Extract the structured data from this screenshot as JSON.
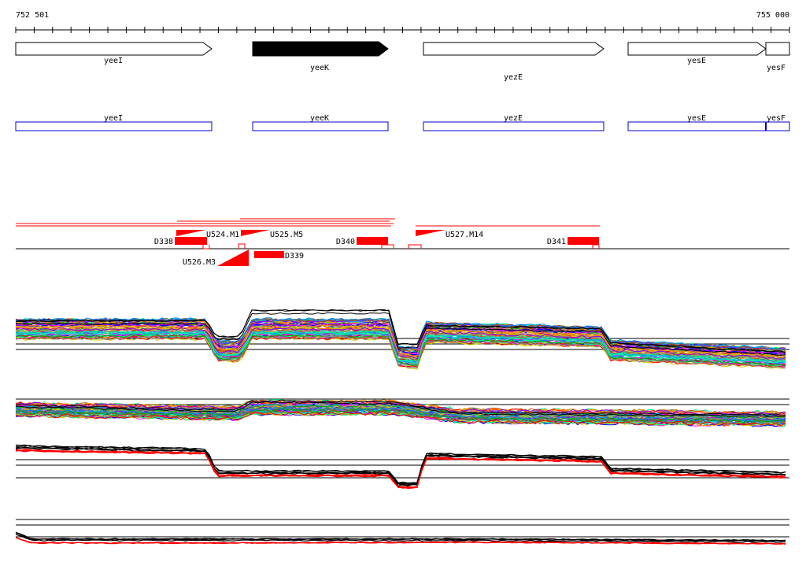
{
  "ruler": {
    "start_label": "752 501",
    "end_label": "755 000",
    "ticks": 42
  },
  "genes": [
    {
      "name": "yeeI",
      "filled": false
    },
    {
      "name": "yeeK",
      "filled": true
    },
    {
      "name": "yezE",
      "filled": false
    },
    {
      "name": "yesE",
      "filled": false
    },
    {
      "name": "yesF",
      "filled": false
    }
  ],
  "annotation_boxes": [
    {
      "name": "yeeI"
    },
    {
      "name": "yeeK"
    },
    {
      "name": "yezE"
    },
    {
      "name": "yesE"
    },
    {
      "name": "yesF"
    }
  ],
  "features": [
    {
      "name": "D338",
      "kind": "block"
    },
    {
      "name": "U524.M1",
      "kind": "flag"
    },
    {
      "name": "U525.M5",
      "kind": "flag"
    },
    {
      "name": "D339",
      "kind": "block"
    },
    {
      "name": "D340",
      "kind": "block"
    },
    {
      "name": "U526.M3",
      "kind": "flag"
    },
    {
      "name": "U527.M14",
      "kind": "flag"
    },
    {
      "name": "D341",
      "kind": "block"
    }
  ],
  "colors": {
    "feature": "#ff0000",
    "annotation": "#0000cc",
    "gene_fill": "#000000",
    "trace_palette": [
      "#ff0000",
      "#00aa00",
      "#0000ff",
      "#ff00ff",
      "#00cccc",
      "#cccc00",
      "#ff8800",
      "#8800ff",
      "#00ff88",
      "#888888",
      "#aa5500",
      "#0088ff"
    ]
  }
}
